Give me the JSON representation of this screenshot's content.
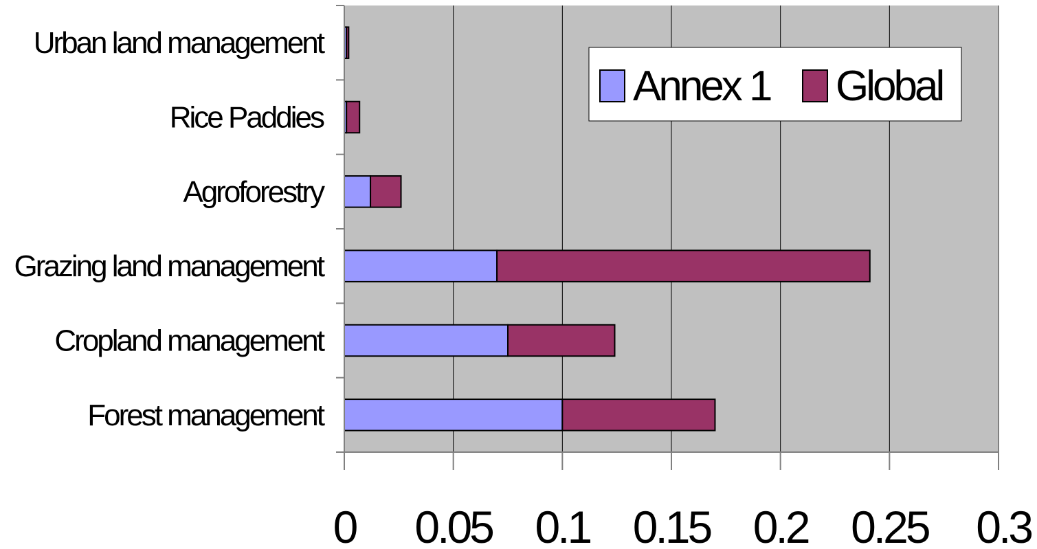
{
  "chart_data": {
    "type": "bar",
    "orientation": "horizontal",
    "stacked": true,
    "title": "",
    "xlabel": "",
    "ylabel": "",
    "categories": [
      "Forest management",
      "Cropland management",
      "Grazing land management",
      "Agroforestry",
      "Rice Paddies",
      "Urban land management"
    ],
    "series": [
      {
        "name": "Annex 1",
        "color": "#9999ff",
        "values": [
          0.1,
          0.075,
          0.07,
          0.012,
          0.001,
          0.001
        ]
      },
      {
        "name": "Global",
        "color": "#993366",
        "values": [
          0.07,
          0.049,
          0.171,
          0.014,
          0.006,
          0.001
        ]
      }
    ],
    "xlim": [
      0,
      0.3
    ],
    "x_ticks": [
      "0",
      "0.05",
      "0.1",
      "0.15",
      "0.2",
      "0.25",
      "0.3"
    ],
    "grid": true,
    "legend": "top-right",
    "plot_background": "#c0c0c0",
    "border_color": "#000000"
  }
}
